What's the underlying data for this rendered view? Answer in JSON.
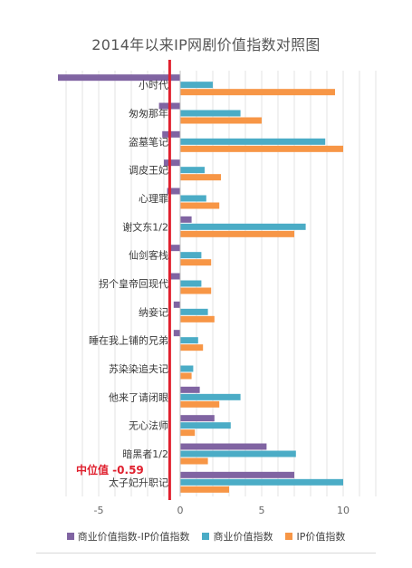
{
  "chart_data": {
    "type": "bar",
    "orientation": "horizontal",
    "title": "2014年以来IP网剧价值指数对照图",
    "categories": [
      "小时代",
      "匆匆那年",
      "盗墓笔记",
      "调皮王妃",
      "心理罪",
      "谢文东1/2",
      "仙剑客栈",
      "拐个皇帝回现代",
      "纳妾记",
      "睡在我上铺的兄弟",
      "苏染染追夫记",
      "他来了请闭眼",
      "无心法师",
      "暗黑者1/2",
      "太子妃升职记"
    ],
    "series": [
      {
        "name": "商业价值指数-IP价值指数",
        "color": "#8064a2",
        "values": [
          -7.5,
          -1.3,
          -1.1,
          -1.0,
          -0.8,
          0.7,
          -0.7,
          -0.6,
          -0.4,
          -0.4,
          0.0,
          1.2,
          2.1,
          5.3,
          7.0
        ]
      },
      {
        "name": "商业价值指数",
        "color": "#4bacc6",
        "values": [
          2.0,
          3.7,
          8.9,
          1.5,
          1.6,
          7.7,
          1.3,
          1.3,
          1.7,
          1.1,
          0.8,
          3.7,
          3.1,
          7.1,
          10.0
        ]
      },
      {
        "name": "IP价值指数",
        "color": "#f79646",
        "values": [
          9.5,
          5.0,
          10.0,
          2.5,
          2.4,
          7.0,
          1.9,
          1.9,
          2.1,
          1.4,
          0.7,
          2.4,
          0.9,
          1.7,
          3.0
        ]
      }
    ],
    "xlim": [
      -7.5,
      12
    ],
    "x_ticks": [
      "-5",
      "0",
      "5",
      "10"
    ],
    "x_tick_values": [
      -5,
      0,
      5,
      10
    ],
    "grid": true,
    "legend_position": "bottom",
    "annotation": {
      "text": "中位值  -0.59",
      "value": -0.59,
      "color": "#e0202e"
    }
  }
}
